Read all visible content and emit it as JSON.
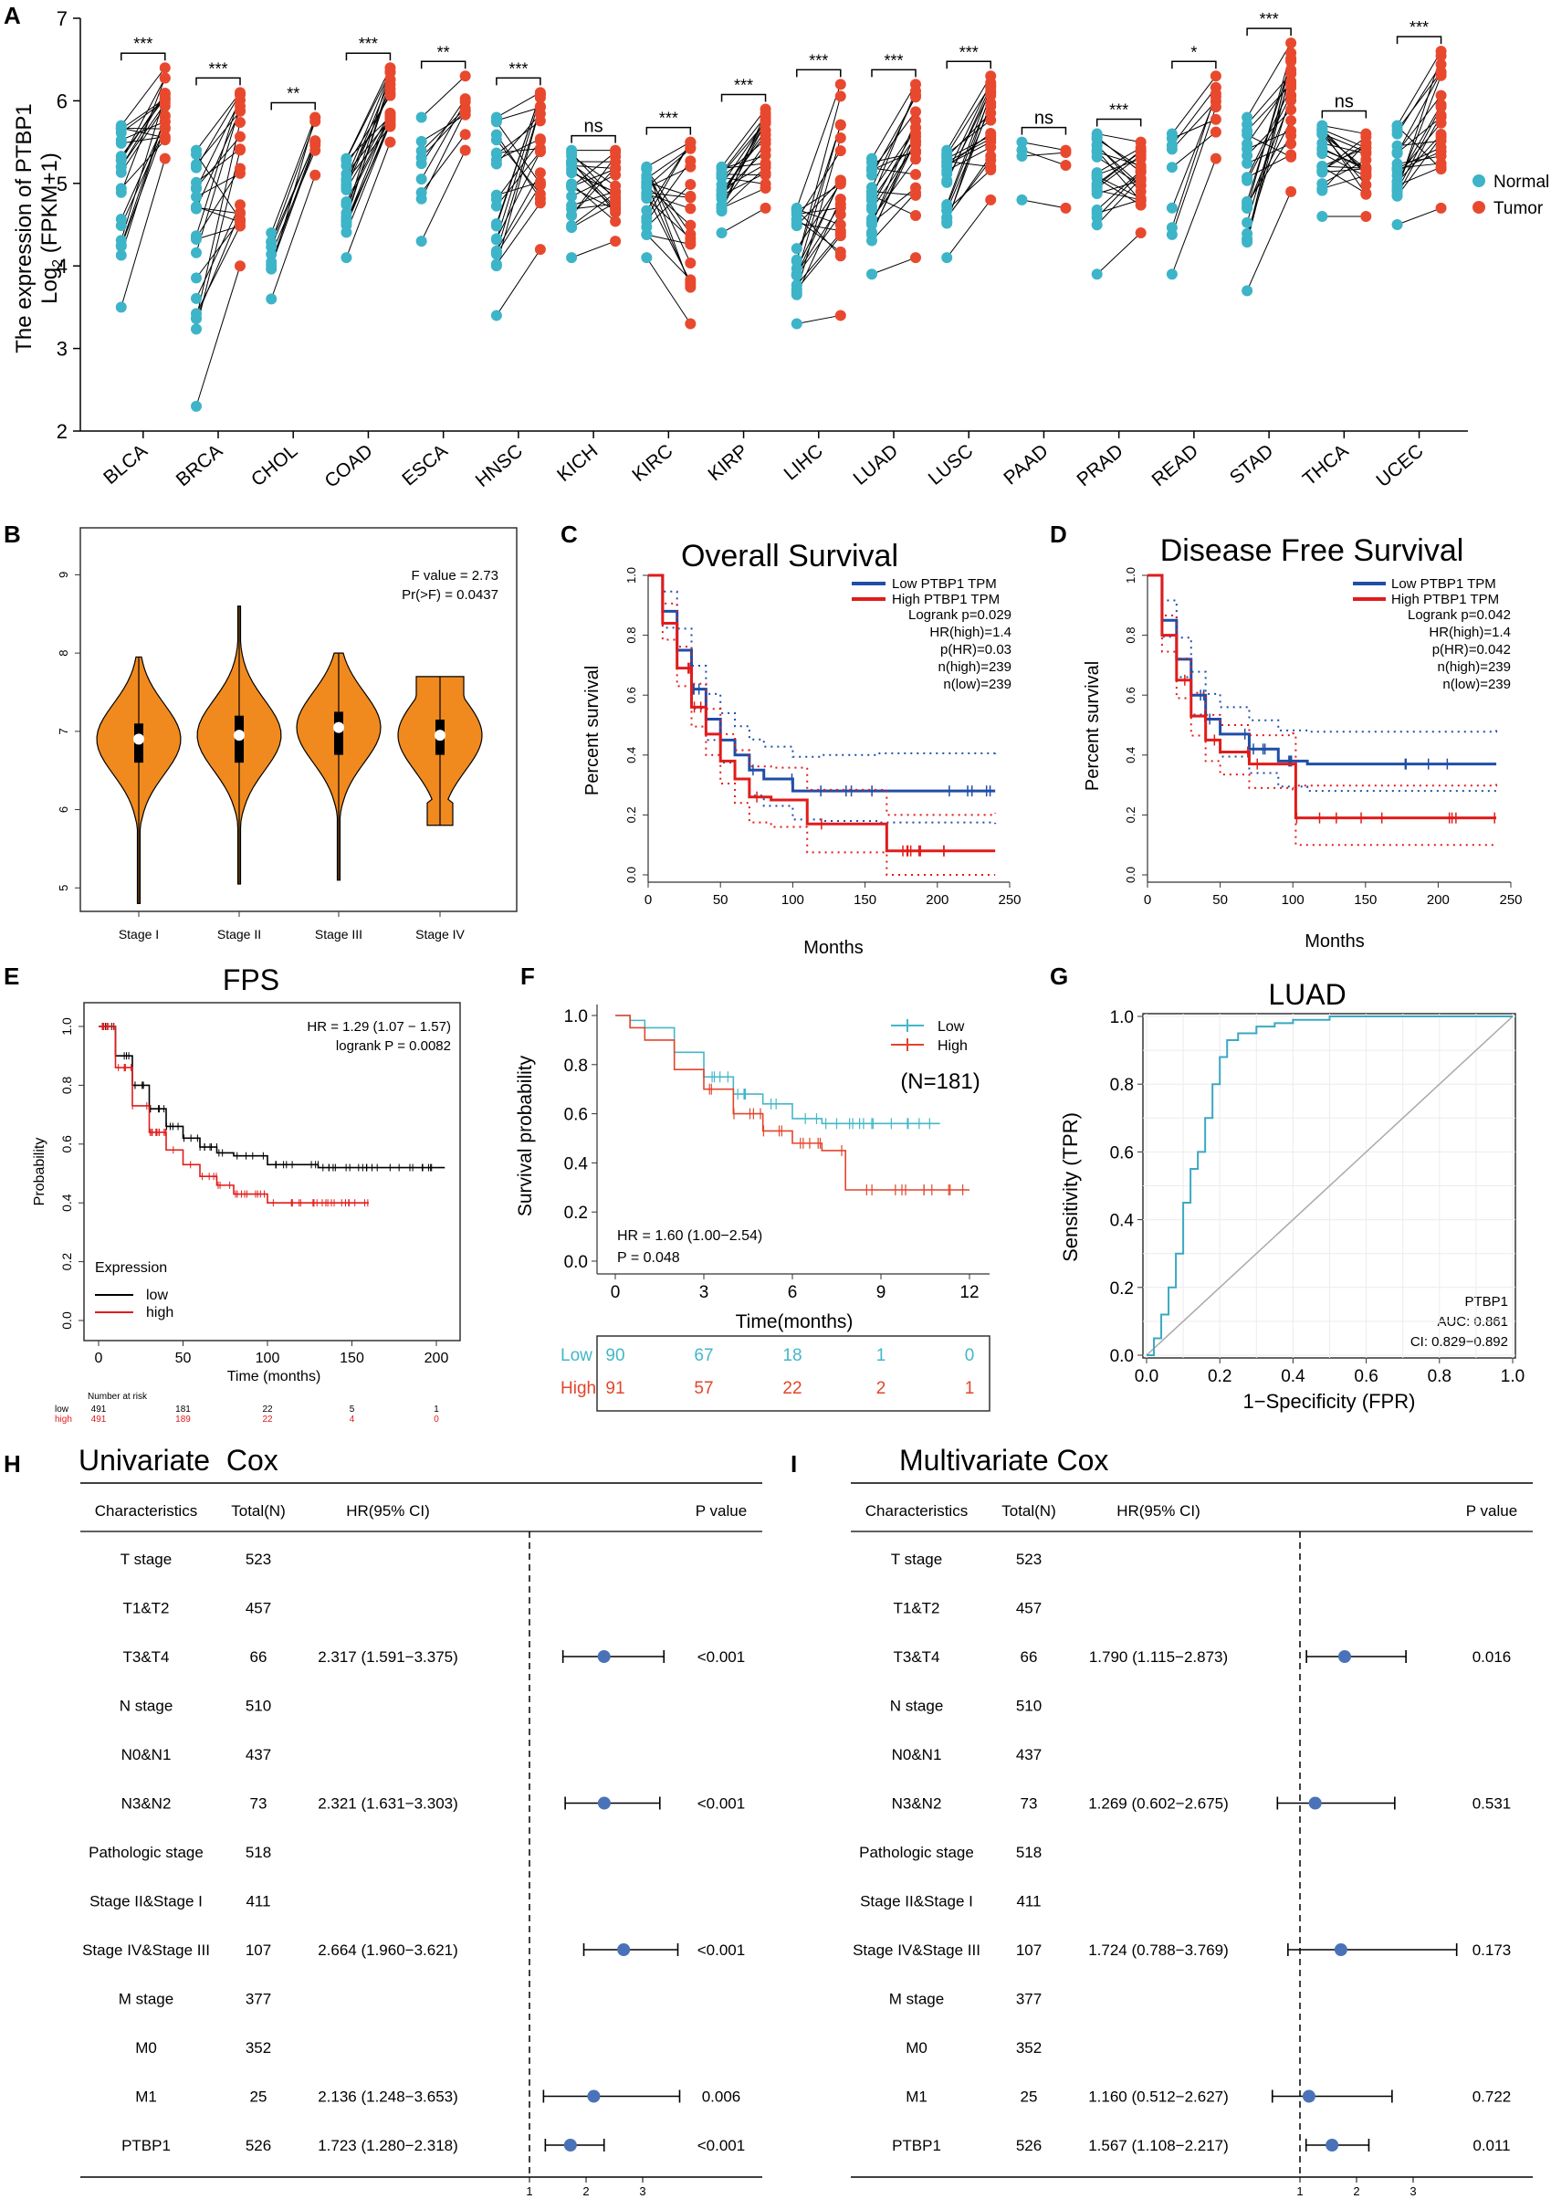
{
  "colors": {
    "normal": "#3db4c8",
    "tumor": "#e8492e",
    "violin": "#f08a1e",
    "km_low": "#1f4ea8",
    "km_high": "#e21b1b",
    "fps_low": "#000000",
    "fps_high": "#e21b1b",
    "f_low": "#43b7c9",
    "f_high": "#e2452b",
    "roc": "#3aa9c1",
    "forest_dot": "#4a72b8"
  },
  "chart_data": [
    {
      "panel": "A",
      "type": "scatter",
      "subtype": "paired dot plot",
      "ylabel_line1": "The expression of PTBP1",
      "ylabel_line2_main": "Log",
      "ylabel_line2_sub": "2",
      "ylabel_line2_rest": " (FPKM+1)",
      "ylim": [
        2,
        7
      ],
      "yticks": [
        "2",
        "3",
        "4",
        "5",
        "6",
        "7"
      ],
      "legend": [
        "Normal",
        "Tumor"
      ],
      "categories": [
        "BLCA",
        "BRCA",
        "CHOL",
        "COAD",
        "ESCA",
        "HNSC",
        "KICH",
        "KIRC",
        "KIRP",
        "LIHC",
        "LUAD",
        "LUSC",
        "PAAD",
        "PRAD",
        "READ",
        "STAD",
        "THCA",
        "UCEC"
      ],
      "significance": [
        "***",
        "***",
        "**",
        "***",
        "**",
        "***",
        "ns",
        "***",
        "***",
        "***",
        "***",
        "***",
        "ns",
        "***",
        "*",
        "***",
        "ns",
        "***"
      ],
      "normal_range": [
        [
          3.5,
          5.7
        ],
        [
          2.3,
          5.4
        ],
        [
          3.6,
          4.4
        ],
        [
          4.1,
          5.3
        ],
        [
          4.3,
          5.8
        ],
        [
          3.4,
          5.8
        ],
        [
          4.1,
          5.4
        ],
        [
          4.1,
          5.2
        ],
        [
          4.4,
          5.2
        ],
        [
          3.3,
          4.7
        ],
        [
          3.9,
          5.3
        ],
        [
          4.1,
          5.4
        ],
        [
          4.8,
          5.5
        ],
        [
          3.9,
          5.6
        ],
        [
          3.9,
          5.6
        ],
        [
          3.7,
          5.8
        ],
        [
          4.6,
          5.7
        ],
        [
          4.5,
          5.7
        ]
      ],
      "tumor_range": [
        [
          5.3,
          6.4
        ],
        [
          4.0,
          6.1
        ],
        [
          5.1,
          5.8
        ],
        [
          5.5,
          6.4
        ],
        [
          5.4,
          6.3
        ],
        [
          4.2,
          6.1
        ],
        [
          4.3,
          5.4
        ],
        [
          3.3,
          5.5
        ],
        [
          4.7,
          5.9
        ],
        [
          3.4,
          6.2
        ],
        [
          4.1,
          6.2
        ],
        [
          4.8,
          6.3
        ],
        [
          4.7,
          5.4
        ],
        [
          4.4,
          5.5
        ],
        [
          5.3,
          6.3
        ],
        [
          4.9,
          6.7
        ],
        [
          4.6,
          5.6
        ],
        [
          4.7,
          6.6
        ]
      ]
    },
    {
      "panel": "B",
      "type": "violin",
      "categories": [
        "Stage I",
        "Stage II",
        "Stage III",
        "Stage IV"
      ],
      "medians": [
        6.9,
        6.95,
        7.05,
        6.95
      ],
      "q1": [
        6.6,
        6.6,
        6.7,
        6.7
      ],
      "q3": [
        7.1,
        7.2,
        7.25,
        7.15
      ],
      "min": [
        4.8,
        5.05,
        5.1,
        5.8
      ],
      "max": [
        7.95,
        8.6,
        8.0,
        7.7
      ],
      "ylim": [
        4.7,
        9.6
      ],
      "yticks": [
        "5",
        "6",
        "7",
        "8",
        "9"
      ],
      "annotation_f": "F value = 2.73",
      "annotation_p": "Pr(>F) = 0.0437"
    },
    {
      "panel": "C",
      "type": "line",
      "subtype": "kaplan-meier",
      "title": "Overall Survival",
      "xlabel": "Months",
      "ylabel": "Percent survival",
      "xlim": [
        0,
        250
      ],
      "ylim": [
        0,
        1
      ],
      "xticks": [
        "0",
        "50",
        "100",
        "150",
        "200",
        "250"
      ],
      "yticks": [
        "0.0",
        "0.2",
        "0.4",
        "0.6",
        "0.8",
        "1.0"
      ],
      "legend_low": "Low PTBP1 TPM",
      "legend_high": "High PTBP1 TPM",
      "stats": [
        "Logrank p=0.029",
        "HR(high)=1.4",
        "p(HR)=0.03",
        "n(high)=239",
        "n(low)=239"
      ],
      "series": [
        {
          "name": "Low PTBP1 TPM",
          "x": [
            0,
            10,
            20,
            30,
            40,
            50,
            60,
            70,
            80,
            100,
            120,
            160,
            240
          ],
          "y": [
            1,
            0.88,
            0.75,
            0.62,
            0.52,
            0.45,
            0.4,
            0.35,
            0.32,
            0.28,
            0.28,
            0.28,
            0.28
          ]
        },
        {
          "name": "High PTBP1 TPM",
          "x": [
            0,
            10,
            20,
            30,
            40,
            50,
            60,
            70,
            85,
            110,
            165,
            240
          ],
          "y": [
            1,
            0.84,
            0.69,
            0.56,
            0.47,
            0.38,
            0.32,
            0.26,
            0.25,
            0.17,
            0.08,
            0.08
          ]
        }
      ]
    },
    {
      "panel": "D",
      "type": "line",
      "subtype": "kaplan-meier",
      "title": "Disease Free Survival",
      "xlabel": "Months",
      "ylabel": "Percent survival",
      "xlim": [
        0,
        250
      ],
      "ylim": [
        0,
        1
      ],
      "xticks": [
        "0",
        "50",
        "100",
        "150",
        "200",
        "250"
      ],
      "yticks": [
        "0.0",
        "0.2",
        "0.4",
        "0.6",
        "0.8",
        "1.0"
      ],
      "legend_low": "Low PTBP1 TPM",
      "legend_high": "High PTBP1 TPM",
      "stats": [
        "Logrank p=0.042",
        "HR(high)=1.4",
        "p(HR)=0.042",
        "n(high)=239",
        "n(low)=239"
      ],
      "series": [
        {
          "name": "Low PTBP1 TPM",
          "x": [
            0,
            10,
            20,
            30,
            40,
            50,
            70,
            90,
            110,
            240
          ],
          "y": [
            1,
            0.85,
            0.72,
            0.6,
            0.52,
            0.47,
            0.42,
            0.38,
            0.37,
            0.37
          ]
        },
        {
          "name": "High PTBP1 TPM",
          "x": [
            0,
            10,
            20,
            30,
            40,
            50,
            70,
            100,
            102,
            240
          ],
          "y": [
            1,
            0.8,
            0.65,
            0.53,
            0.45,
            0.41,
            0.37,
            0.37,
            0.19,
            0.19
          ]
        }
      ]
    },
    {
      "panel": "E",
      "type": "line",
      "subtype": "kaplan-meier",
      "title": "FPS",
      "xlabel": "Time (months)",
      "ylabel": "Probability",
      "xlim": [
        0,
        210
      ],
      "ylim": [
        0,
        1
      ],
      "xticks": [
        "0",
        "50",
        "100",
        "150",
        "200"
      ],
      "yticks": [
        "0.0",
        "0.2",
        "0.4",
        "0.6",
        "0.8",
        "1.0"
      ],
      "stat_hr": "HR = 1.29 (1.07 − 1.57)",
      "stat_p": "logrank P = 0.0082",
      "legend_title": "Expression",
      "legend": [
        "low",
        "high"
      ],
      "risk_title": "Number at risk",
      "risk_low": [
        "low",
        "491",
        "181",
        "22",
        "5",
        "1"
      ],
      "risk_high": [
        "high",
        "491",
        "189",
        "22",
        "4",
        "0"
      ],
      "series": [
        {
          "name": "low",
          "x": [
            0,
            10,
            20,
            30,
            40,
            50,
            60,
            70,
            80,
            100,
            130,
            205
          ],
          "y": [
            1,
            0.9,
            0.8,
            0.72,
            0.66,
            0.62,
            0.59,
            0.57,
            0.56,
            0.53,
            0.52,
            0.52
          ]
        },
        {
          "name": "high",
          "x": [
            0,
            10,
            20,
            30,
            40,
            50,
            60,
            70,
            80,
            100,
            130,
            160
          ],
          "y": [
            1,
            0.86,
            0.73,
            0.64,
            0.58,
            0.53,
            0.49,
            0.46,
            0.43,
            0.4,
            0.4,
            0.4
          ]
        }
      ]
    },
    {
      "panel": "F",
      "type": "line",
      "subtype": "kaplan-meier",
      "xlabel": "Time(months)",
      "ylabel": "Survival probability",
      "xlim": [
        0,
        12
      ],
      "ylim": [
        0,
        1
      ],
      "xticks": [
        "0",
        "3",
        "6",
        "9",
        "12"
      ],
      "yticks": [
        "0.0",
        "0.2",
        "0.4",
        "0.6",
        "0.8",
        "1.0"
      ],
      "legend": [
        "Low",
        "High"
      ],
      "n_label": "(N=181)",
      "stat_hr": "HR = 1.60 (1.00−2.54)",
      "stat_p": "P = 0.048",
      "risk_low": [
        "Low",
        "90",
        "67",
        "18",
        "1",
        "0"
      ],
      "risk_high": [
        "High",
        "91",
        "57",
        "22",
        "2",
        "1"
      ],
      "series": [
        {
          "name": "Low",
          "x": [
            0,
            0.5,
            1,
            2,
            3,
            4,
            5,
            6,
            7,
            11
          ],
          "y": [
            1,
            0.98,
            0.95,
            0.85,
            0.75,
            0.68,
            0.64,
            0.58,
            0.56,
            0.56
          ]
        },
        {
          "name": "High",
          "x": [
            0,
            0.5,
            1,
            2,
            3,
            4,
            5,
            6,
            7,
            7.6,
            7.8,
            12
          ],
          "y": [
            1,
            0.95,
            0.9,
            0.78,
            0.7,
            0.6,
            0.53,
            0.48,
            0.45,
            0.45,
            0.29,
            0.29
          ]
        }
      ]
    },
    {
      "panel": "G",
      "type": "line",
      "subtype": "roc",
      "title": "LUAD",
      "xlabel": "1−Specificity (FPR)",
      "ylabel": "Sensitivity (TPR)",
      "xlim": [
        0,
        1
      ],
      "ylim": [
        0,
        1
      ],
      "xticks": [
        "0.0",
        "0.2",
        "0.4",
        "0.6",
        "0.8",
        "1.0"
      ],
      "yticks": [
        "0.0",
        "0.2",
        "0.4",
        "0.6",
        "0.8",
        "1.0"
      ],
      "label": "PTBP1",
      "auc": "AUC: 0.861",
      "ci": "CI: 0.829−0.892",
      "x": [
        0,
        0.02,
        0.04,
        0.06,
        0.08,
        0.1,
        0.12,
        0.14,
        0.16,
        0.18,
        0.2,
        0.22,
        0.25,
        0.3,
        0.35,
        0.4,
        0.5,
        0.6,
        0.8,
        1.0
      ],
      "y": [
        0,
        0.05,
        0.12,
        0.2,
        0.3,
        0.45,
        0.55,
        0.6,
        0.7,
        0.8,
        0.88,
        0.93,
        0.95,
        0.97,
        0.98,
        0.99,
        1.0,
        1.0,
        1.0,
        1.0
      ]
    },
    {
      "panel": "H",
      "type": "table",
      "subtype": "forest plot",
      "title": "Univariate  Cox",
      "headers": [
        "Characteristics",
        "Total(N)",
        "HR(95% CI)",
        "P value"
      ],
      "axis_ticks": [
        "1",
        "2",
        "3"
      ],
      "rows": [
        {
          "name": "T stage",
          "n": "523",
          "hr": "",
          "p": "",
          "est": null,
          "lo": null,
          "hi": null
        },
        {
          "name": "T1&T2",
          "n": "457",
          "hr": "",
          "p": "",
          "est": null,
          "lo": null,
          "hi": null
        },
        {
          "name": "T3&T4",
          "n": "66",
          "hr": "2.317 (1.591−3.375)",
          "p": "<0.001",
          "est": 2.317,
          "lo": 1.591,
          "hi": 3.375
        },
        {
          "name": "N stage",
          "n": "510",
          "hr": "",
          "p": "",
          "est": null,
          "lo": null,
          "hi": null
        },
        {
          "name": "N0&N1",
          "n": "437",
          "hr": "",
          "p": "",
          "est": null,
          "lo": null,
          "hi": null
        },
        {
          "name": "N3&N2",
          "n": "73",
          "hr": "2.321 (1.631−3.303)",
          "p": "<0.001",
          "est": 2.321,
          "lo": 1.631,
          "hi": 3.303
        },
        {
          "name": "Pathologic stage",
          "n": "518",
          "hr": "",
          "p": "",
          "est": null,
          "lo": null,
          "hi": null
        },
        {
          "name": "Stage II&Stage I",
          "n": "411",
          "hr": "",
          "p": "",
          "est": null,
          "lo": null,
          "hi": null
        },
        {
          "name": "Stage IV&Stage III",
          "n": "107",
          "hr": "2.664 (1.960−3.621)",
          "p": "<0.001",
          "est": 2.664,
          "lo": 1.96,
          "hi": 3.621
        },
        {
          "name": "M stage",
          "n": "377",
          "hr": "",
          "p": "",
          "est": null,
          "lo": null,
          "hi": null
        },
        {
          "name": "M0",
          "n": "352",
          "hr": "",
          "p": "",
          "est": null,
          "lo": null,
          "hi": null
        },
        {
          "name": "M1",
          "n": "25",
          "hr": "2.136 (1.248−3.653)",
          "p": "0.006",
          "est": 2.136,
          "lo": 1.248,
          "hi": 3.653
        },
        {
          "name": "PTBP1",
          "n": "526",
          "hr": "1.723 (1.280−2.318)",
          "p": "<0.001",
          "est": 1.723,
          "lo": 1.28,
          "hi": 2.318
        }
      ]
    },
    {
      "panel": "I",
      "type": "table",
      "subtype": "forest plot",
      "title": "Multivariate Cox",
      "headers": [
        "Characteristics",
        "Total(N)",
        "HR(95% CI)",
        "P value"
      ],
      "axis_ticks": [
        "1",
        "2",
        "3"
      ],
      "rows": [
        {
          "name": "T stage",
          "n": "523",
          "hr": "",
          "p": "",
          "est": null,
          "lo": null,
          "hi": null
        },
        {
          "name": "T1&T2",
          "n": "457",
          "hr": "",
          "p": "",
          "est": null,
          "lo": null,
          "hi": null
        },
        {
          "name": "T3&T4",
          "n": "66",
          "hr": "1.790 (1.115−2.873)",
          "p": "0.016",
          "est": 1.79,
          "lo": 1.115,
          "hi": 2.873
        },
        {
          "name": "N stage",
          "n": "510",
          "hr": "",
          "p": "",
          "est": null,
          "lo": null,
          "hi": null
        },
        {
          "name": "N0&N1",
          "n": "437",
          "hr": "",
          "p": "",
          "est": null,
          "lo": null,
          "hi": null
        },
        {
          "name": "N3&N2",
          "n": "73",
          "hr": "1.269 (0.602−2.675)",
          "p": "0.531",
          "est": 1.269,
          "lo": 0.602,
          "hi": 2.675
        },
        {
          "name": "Pathologic stage",
          "n": "518",
          "hr": "",
          "p": "",
          "est": null,
          "lo": null,
          "hi": null
        },
        {
          "name": "Stage II&Stage I",
          "n": "411",
          "hr": "",
          "p": "",
          "est": null,
          "lo": null,
          "hi": null
        },
        {
          "name": "Stage IV&Stage III",
          "n": "107",
          "hr": "1.724 (0.788−3.769)",
          "p": "0.173",
          "est": 1.724,
          "lo": 0.788,
          "hi": 3.769
        },
        {
          "name": "M stage",
          "n": "377",
          "hr": "",
          "p": "",
          "est": null,
          "lo": null,
          "hi": null
        },
        {
          "name": "M0",
          "n": "352",
          "hr": "",
          "p": "",
          "est": null,
          "lo": null,
          "hi": null
        },
        {
          "name": "M1",
          "n": "25",
          "hr": "1.160 (0.512−2.627)",
          "p": "0.722",
          "est": 1.16,
          "lo": 0.512,
          "hi": 2.627
        },
        {
          "name": "PTBP1",
          "n": "526",
          "hr": "1.567 (1.108−2.217)",
          "p": "0.011",
          "est": 1.567,
          "lo": 1.108,
          "hi": 2.217
        }
      ]
    }
  ],
  "panel_letters": [
    "A",
    "B",
    "C",
    "D",
    "E",
    "F",
    "G",
    "H",
    "I"
  ]
}
